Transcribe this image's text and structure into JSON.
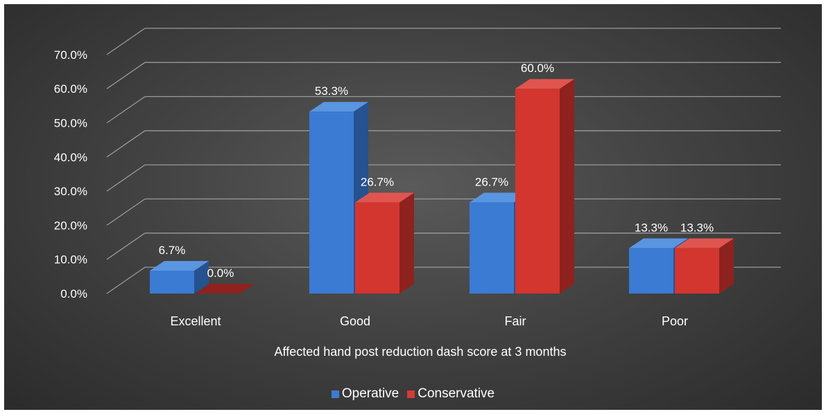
{
  "chart_data": {
    "type": "bar",
    "style": "3d-clustered-column",
    "categories": [
      "Excellent",
      "Good",
      "Fair",
      "Poor"
    ],
    "series": [
      {
        "name": "Operative",
        "values": [
          6.7,
          53.3,
          26.7,
          13.3
        ],
        "labels": [
          "6.7%",
          "53.3%",
          "26.7%",
          "13.3%"
        ],
        "color": "#3d7bd0"
      },
      {
        "name": "Conservative",
        "values": [
          0.0,
          26.7,
          60.0,
          13.3
        ],
        "labels": [
          "0.0%",
          "26.7%",
          "60.0%",
          "13.3%"
        ],
        "color": "#d63a36"
      }
    ],
    "yticks": [
      "0.0%",
      "10.0%",
      "20.0%",
      "30.0%",
      "40.0%",
      "50.0%",
      "60.0%",
      "70.0%"
    ],
    "ylim": [
      0,
      70
    ],
    "xlabel": "Affected hand post reduction dash score at 3 months",
    "ylabel": "",
    "grid": true,
    "legend_position": "bottom",
    "background": "#404040"
  }
}
